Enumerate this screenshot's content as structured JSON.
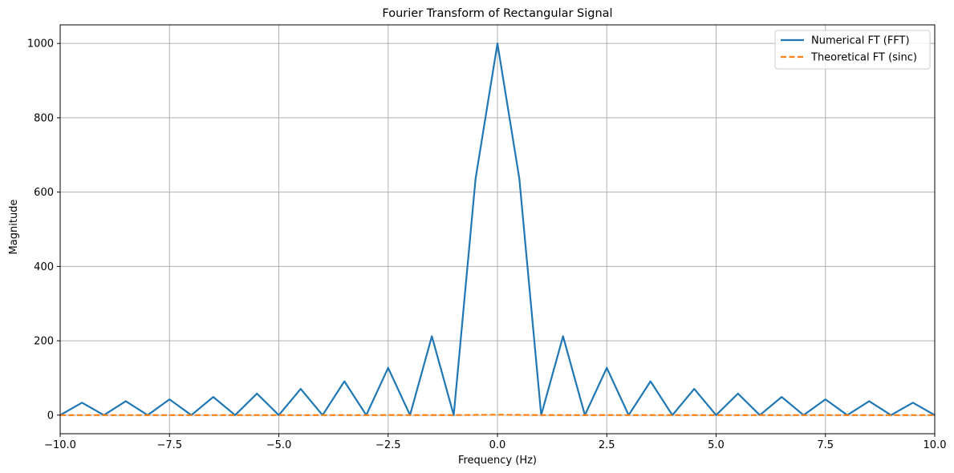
{
  "chart_data": {
    "type": "line",
    "title": "Fourier Transform of Rectangular Signal",
    "xlabel": "Frequency (Hz)",
    "ylabel": "Magnitude",
    "xlim": [
      -10,
      10
    ],
    "ylim": [
      -50,
      1050
    ],
    "grid": true,
    "legend_position": "top-right",
    "x_ticks": [
      -10,
      -7.5,
      -5,
      -2.5,
      0,
      2.5,
      5,
      7.5,
      10
    ],
    "x_tick_labels": [
      "−10.0",
      "−7.5",
      "−5.0",
      "−2.5",
      "0.0",
      "2.5",
      "5.0",
      "7.5",
      "10.0"
    ],
    "y_ticks": [
      0,
      200,
      400,
      600,
      800,
      1000
    ],
    "y_tick_labels": [
      "0",
      "200",
      "400",
      "600",
      "800",
      "1000"
    ],
    "series": [
      {
        "name": "Numerical FT (FFT)",
        "color": "#1f77b4",
        "style": "solid",
        "x": [
          -10,
          -9.5,
          -9,
          -8.5,
          -8,
          -7.5,
          -7,
          -6.5,
          -6,
          -5.5,
          -5,
          -4.5,
          -4,
          -3.5,
          -3,
          -2.5,
          -2,
          -1.5,
          -1,
          -0.5,
          0,
          0.5,
          1,
          1.5,
          2,
          2.5,
          3,
          3.5,
          4,
          4.5,
          5,
          5.5,
          6,
          6.5,
          7,
          7.5,
          8,
          8.5,
          9,
          9.5,
          10
        ],
        "y": [
          0,
          33.5,
          0,
          37.5,
          0,
          42.4,
          0,
          49,
          0,
          57.9,
          0,
          70.7,
          0,
          91,
          0,
          127.3,
          0,
          212.2,
          0,
          636.6,
          1000,
          636.6,
          0,
          212.2,
          0,
          127.3,
          0,
          91,
          0,
          70.7,
          0,
          57.9,
          0,
          49,
          0,
          42.4,
          0,
          37.5,
          0,
          33.5,
          0
        ]
      },
      {
        "name": "Theoretical FT (sinc)",
        "color": "#ff7f0e",
        "style": "dashed",
        "x": [
          -10,
          -9.5,
          -9,
          -8.5,
          -8,
          -7.5,
          -7,
          -6.5,
          -6,
          -5.5,
          -5,
          -4.5,
          -4,
          -3.5,
          -3,
          -2.5,
          -2,
          -1.5,
          -1,
          -0.5,
          0,
          0.5,
          1,
          1.5,
          2,
          2.5,
          3,
          3.5,
          4,
          4.5,
          5,
          5.5,
          6,
          6.5,
          7,
          7.5,
          8,
          8.5,
          9,
          9.5,
          10
        ],
        "y": [
          0,
          0.03,
          0,
          0.04,
          0,
          0.04,
          0,
          0.05,
          0,
          0.06,
          0,
          0.07,
          0,
          0.09,
          0,
          0.13,
          0,
          0.21,
          0,
          0.64,
          1,
          0.64,
          0,
          0.21,
          0,
          0.13,
          0,
          0.09,
          0,
          0.07,
          0,
          0.06,
          0,
          0.05,
          0,
          0.04,
          0,
          0.04,
          0,
          0.03,
          0
        ]
      }
    ]
  }
}
